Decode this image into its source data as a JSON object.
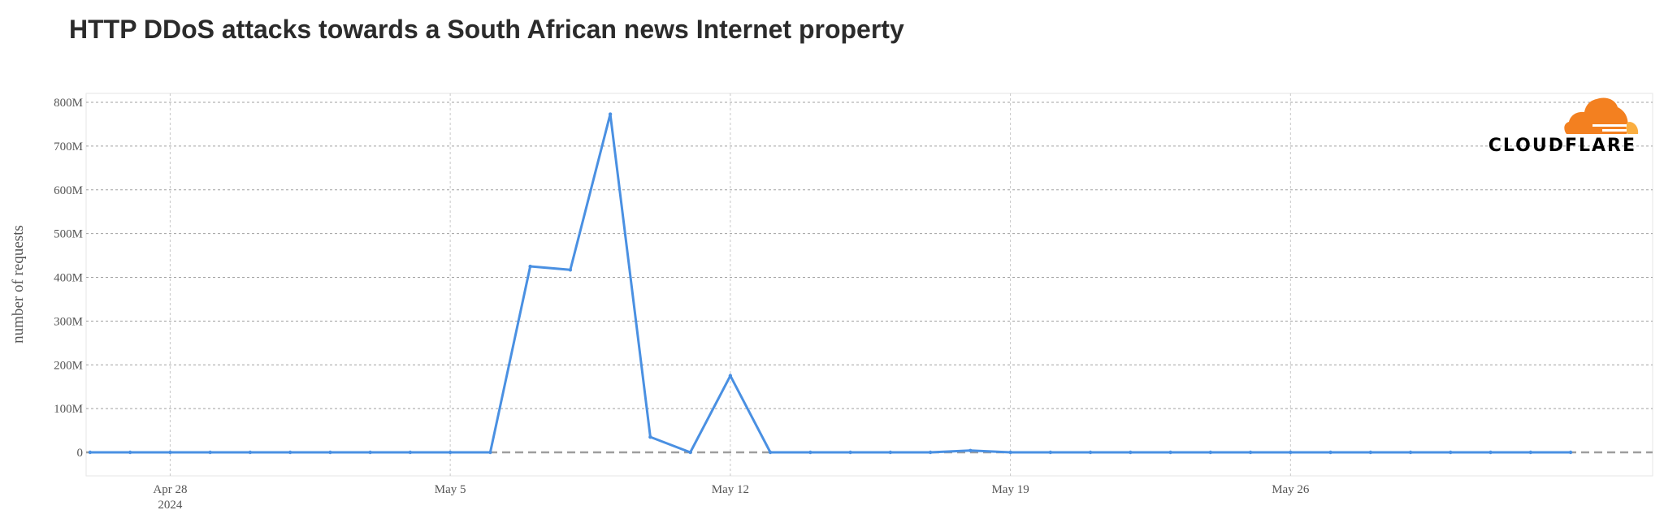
{
  "title": "HTTP DDoS attacks towards a South African news Internet property",
  "logo": {
    "text": "CLOUDFLARE",
    "colors": [
      "#F38020",
      "#FAAE40"
    ]
  },
  "chart_data": {
    "type": "line",
    "title": "HTTP DDoS attacks towards a South African news Internet property",
    "xlabel": "",
    "ylabel": "number of requests",
    "ylim": [
      -50000000,
      800000000
    ],
    "y_ticks": [
      0,
      100000000,
      200000000,
      300000000,
      400000000,
      500000000,
      600000000,
      700000000,
      800000000
    ],
    "y_tick_labels": [
      "0",
      "100M",
      "200M",
      "300M",
      "400M",
      "500M",
      "600M",
      "700M",
      "800M"
    ],
    "x_ticks": [
      "2024-04-28",
      "2024-05-05",
      "2024-05-12",
      "2024-05-19",
      "2024-05-26"
    ],
    "x_tick_labels": [
      "Apr 28",
      "May 5",
      "May 12",
      "May 19",
      "May 26"
    ],
    "x_tick_sublabels": [
      "2024",
      "",
      "",
      "",
      ""
    ],
    "xlim": [
      "2024-04-26",
      "2024-06-03"
    ],
    "grid": true,
    "baseline": 0,
    "line_color": "#4A90E2",
    "baseline_color": "#9E9E9E",
    "series": [
      {
        "x": [
          "2024-04-26",
          "2024-04-27",
          "2024-04-28",
          "2024-04-29",
          "2024-04-30",
          "2024-05-01",
          "2024-05-02",
          "2024-05-03",
          "2024-05-04",
          "2024-05-05",
          "2024-05-06",
          "2024-05-07",
          "2024-05-08",
          "2024-05-09",
          "2024-05-10",
          "2024-05-11",
          "2024-05-12",
          "2024-05-13",
          "2024-05-14",
          "2024-05-15",
          "2024-05-16",
          "2024-05-17",
          "2024-05-18",
          "2024-05-19",
          "2024-05-20",
          "2024-05-21",
          "2024-05-22",
          "2024-05-23",
          "2024-05-24",
          "2024-05-25",
          "2024-05-26",
          "2024-05-27",
          "2024-05-28",
          "2024-05-29",
          "2024-05-30",
          "2024-05-31",
          "2024-06-01",
          "2024-06-02"
        ],
        "values": [
          0,
          0,
          0,
          0,
          0,
          0,
          0,
          0,
          0,
          0,
          0,
          425000000,
          417000000,
          773000000,
          35000000,
          0,
          175000000,
          0,
          0,
          0,
          0,
          0,
          4000000,
          0,
          0,
          0,
          0,
          0,
          0,
          0,
          0,
          0,
          0,
          0,
          0,
          0,
          0,
          0
        ]
      }
    ]
  }
}
